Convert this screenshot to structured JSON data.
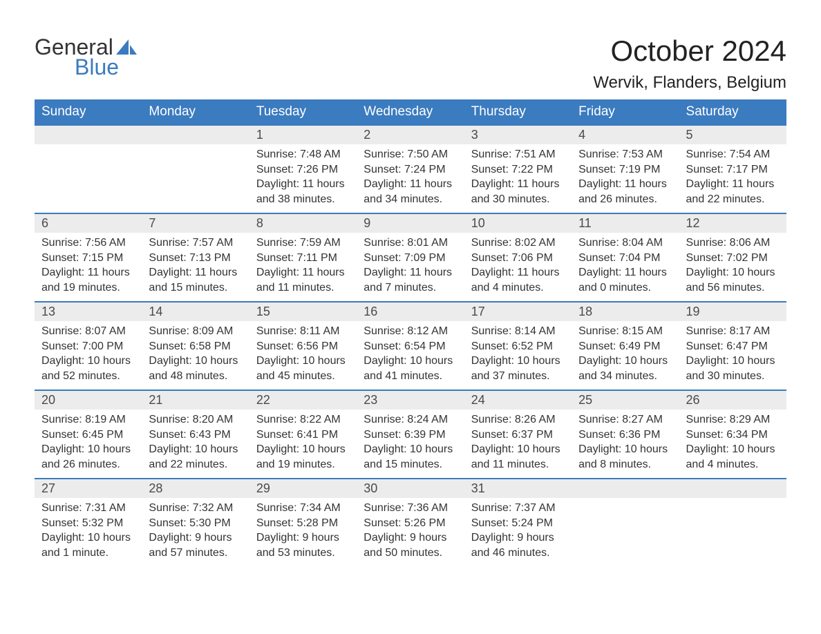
{
  "logo": {
    "text_general": "General",
    "text_blue": "Blue",
    "icon_color": "#3b7bbf"
  },
  "title": "October 2024",
  "location": "Wervik, Flanders, Belgium",
  "calendar": {
    "header_bg": "#3b7bbf",
    "header_fg": "#ffffff",
    "daynum_bg": "#ececec",
    "border_color": "#3b7bbf",
    "background_color": "#ffffff",
    "text_color": "#333333",
    "days_of_week": [
      "Sunday",
      "Monday",
      "Tuesday",
      "Wednesday",
      "Thursday",
      "Friday",
      "Saturday"
    ],
    "weeks": [
      [
        null,
        null,
        {
          "day": "1",
          "sunrise": "Sunrise: 7:48 AM",
          "sunset": "Sunset: 7:26 PM",
          "daylight1": "Daylight: 11 hours",
          "daylight2": "and 38 minutes."
        },
        {
          "day": "2",
          "sunrise": "Sunrise: 7:50 AM",
          "sunset": "Sunset: 7:24 PM",
          "daylight1": "Daylight: 11 hours",
          "daylight2": "and 34 minutes."
        },
        {
          "day": "3",
          "sunrise": "Sunrise: 7:51 AM",
          "sunset": "Sunset: 7:22 PM",
          "daylight1": "Daylight: 11 hours",
          "daylight2": "and 30 minutes."
        },
        {
          "day": "4",
          "sunrise": "Sunrise: 7:53 AM",
          "sunset": "Sunset: 7:19 PM",
          "daylight1": "Daylight: 11 hours",
          "daylight2": "and 26 minutes."
        },
        {
          "day": "5",
          "sunrise": "Sunrise: 7:54 AM",
          "sunset": "Sunset: 7:17 PM",
          "daylight1": "Daylight: 11 hours",
          "daylight2": "and 22 minutes."
        }
      ],
      [
        {
          "day": "6",
          "sunrise": "Sunrise: 7:56 AM",
          "sunset": "Sunset: 7:15 PM",
          "daylight1": "Daylight: 11 hours",
          "daylight2": "and 19 minutes."
        },
        {
          "day": "7",
          "sunrise": "Sunrise: 7:57 AM",
          "sunset": "Sunset: 7:13 PM",
          "daylight1": "Daylight: 11 hours",
          "daylight2": "and 15 minutes."
        },
        {
          "day": "8",
          "sunrise": "Sunrise: 7:59 AM",
          "sunset": "Sunset: 7:11 PM",
          "daylight1": "Daylight: 11 hours",
          "daylight2": "and 11 minutes."
        },
        {
          "day": "9",
          "sunrise": "Sunrise: 8:01 AM",
          "sunset": "Sunset: 7:09 PM",
          "daylight1": "Daylight: 11 hours",
          "daylight2": "and 7 minutes."
        },
        {
          "day": "10",
          "sunrise": "Sunrise: 8:02 AM",
          "sunset": "Sunset: 7:06 PM",
          "daylight1": "Daylight: 11 hours",
          "daylight2": "and 4 minutes."
        },
        {
          "day": "11",
          "sunrise": "Sunrise: 8:04 AM",
          "sunset": "Sunset: 7:04 PM",
          "daylight1": "Daylight: 11 hours",
          "daylight2": "and 0 minutes."
        },
        {
          "day": "12",
          "sunrise": "Sunrise: 8:06 AM",
          "sunset": "Sunset: 7:02 PM",
          "daylight1": "Daylight: 10 hours",
          "daylight2": "and 56 minutes."
        }
      ],
      [
        {
          "day": "13",
          "sunrise": "Sunrise: 8:07 AM",
          "sunset": "Sunset: 7:00 PM",
          "daylight1": "Daylight: 10 hours",
          "daylight2": "and 52 minutes."
        },
        {
          "day": "14",
          "sunrise": "Sunrise: 8:09 AM",
          "sunset": "Sunset: 6:58 PM",
          "daylight1": "Daylight: 10 hours",
          "daylight2": "and 48 minutes."
        },
        {
          "day": "15",
          "sunrise": "Sunrise: 8:11 AM",
          "sunset": "Sunset: 6:56 PM",
          "daylight1": "Daylight: 10 hours",
          "daylight2": "and 45 minutes."
        },
        {
          "day": "16",
          "sunrise": "Sunrise: 8:12 AM",
          "sunset": "Sunset: 6:54 PM",
          "daylight1": "Daylight: 10 hours",
          "daylight2": "and 41 minutes."
        },
        {
          "day": "17",
          "sunrise": "Sunrise: 8:14 AM",
          "sunset": "Sunset: 6:52 PM",
          "daylight1": "Daylight: 10 hours",
          "daylight2": "and 37 minutes."
        },
        {
          "day": "18",
          "sunrise": "Sunrise: 8:15 AM",
          "sunset": "Sunset: 6:49 PM",
          "daylight1": "Daylight: 10 hours",
          "daylight2": "and 34 minutes."
        },
        {
          "day": "19",
          "sunrise": "Sunrise: 8:17 AM",
          "sunset": "Sunset: 6:47 PM",
          "daylight1": "Daylight: 10 hours",
          "daylight2": "and 30 minutes."
        }
      ],
      [
        {
          "day": "20",
          "sunrise": "Sunrise: 8:19 AM",
          "sunset": "Sunset: 6:45 PM",
          "daylight1": "Daylight: 10 hours",
          "daylight2": "and 26 minutes."
        },
        {
          "day": "21",
          "sunrise": "Sunrise: 8:20 AM",
          "sunset": "Sunset: 6:43 PM",
          "daylight1": "Daylight: 10 hours",
          "daylight2": "and 22 minutes."
        },
        {
          "day": "22",
          "sunrise": "Sunrise: 8:22 AM",
          "sunset": "Sunset: 6:41 PM",
          "daylight1": "Daylight: 10 hours",
          "daylight2": "and 19 minutes."
        },
        {
          "day": "23",
          "sunrise": "Sunrise: 8:24 AM",
          "sunset": "Sunset: 6:39 PM",
          "daylight1": "Daylight: 10 hours",
          "daylight2": "and 15 minutes."
        },
        {
          "day": "24",
          "sunrise": "Sunrise: 8:26 AM",
          "sunset": "Sunset: 6:37 PM",
          "daylight1": "Daylight: 10 hours",
          "daylight2": "and 11 minutes."
        },
        {
          "day": "25",
          "sunrise": "Sunrise: 8:27 AM",
          "sunset": "Sunset: 6:36 PM",
          "daylight1": "Daylight: 10 hours",
          "daylight2": "and 8 minutes."
        },
        {
          "day": "26",
          "sunrise": "Sunrise: 8:29 AM",
          "sunset": "Sunset: 6:34 PM",
          "daylight1": "Daylight: 10 hours",
          "daylight2": "and 4 minutes."
        }
      ],
      [
        {
          "day": "27",
          "sunrise": "Sunrise: 7:31 AM",
          "sunset": "Sunset: 5:32 PM",
          "daylight1": "Daylight: 10 hours",
          "daylight2": "and 1 minute."
        },
        {
          "day": "28",
          "sunrise": "Sunrise: 7:32 AM",
          "sunset": "Sunset: 5:30 PM",
          "daylight1": "Daylight: 9 hours",
          "daylight2": "and 57 minutes."
        },
        {
          "day": "29",
          "sunrise": "Sunrise: 7:34 AM",
          "sunset": "Sunset: 5:28 PM",
          "daylight1": "Daylight: 9 hours",
          "daylight2": "and 53 minutes."
        },
        {
          "day": "30",
          "sunrise": "Sunrise: 7:36 AM",
          "sunset": "Sunset: 5:26 PM",
          "daylight1": "Daylight: 9 hours",
          "daylight2": "and 50 minutes."
        },
        {
          "day": "31",
          "sunrise": "Sunrise: 7:37 AM",
          "sunset": "Sunset: 5:24 PM",
          "daylight1": "Daylight: 9 hours",
          "daylight2": "and 46 minutes."
        },
        null,
        null
      ]
    ]
  }
}
